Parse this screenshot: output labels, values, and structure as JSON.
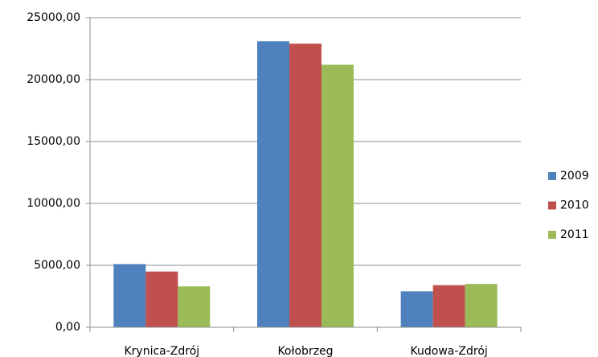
{
  "chart_data": {
    "type": "bar",
    "categories": [
      "Krynica-Zdrój",
      "Kołobrzeg",
      "Kudowa-Zdrój"
    ],
    "series": [
      {
        "name": "2009",
        "color": "#4f81bd",
        "values": [
          5100,
          23100,
          2900
        ]
      },
      {
        "name": "2010",
        "color": "#c0504d",
        "values": [
          4500,
          22900,
          3400
        ]
      },
      {
        "name": "2011",
        "color": "#9bbb59",
        "values": [
          3300,
          21200,
          3500
        ]
      }
    ],
    "ylim": [
      0,
      25000
    ],
    "yticks": [
      {
        "value": 0,
        "label": "0,00"
      },
      {
        "value": 5000,
        "label": "5000,00"
      },
      {
        "value": 10000,
        "label": "10000,00"
      },
      {
        "value": 15000,
        "label": "15000,00"
      },
      {
        "value": 20000,
        "label": "20000,00"
      },
      {
        "value": 25000,
        "label": "25000,00"
      }
    ],
    "grid": true,
    "legend": "right"
  }
}
